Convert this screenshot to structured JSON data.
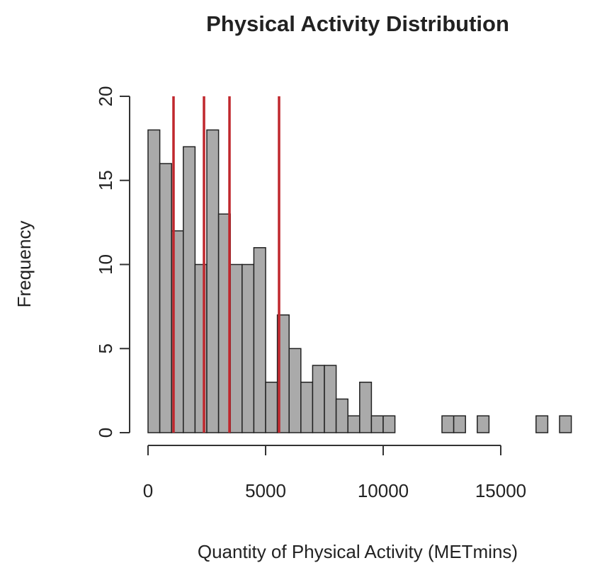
{
  "chart_data": {
    "type": "histogram",
    "title": "Physical Activity Distribution",
    "x_label": "Quantity of Physical Activity (METmins)",
    "y_label": "Frequency",
    "bins": [
      0,
      500,
      1000,
      1500,
      2000,
      2500,
      3000,
      3500,
      4000,
      4500,
      5000,
      5500,
      6000,
      6500,
      7000,
      7500,
      8000,
      8500,
      9000,
      9500,
      10000,
      10500,
      11000,
      11500,
      12000,
      12500,
      13000,
      13500,
      14000,
      14500,
      15000,
      15500,
      16000,
      16500,
      17000,
      17500,
      18000
    ],
    "counts": [
      18,
      16,
      12,
      17,
      10,
      18,
      13,
      10,
      10,
      11,
      3,
      7,
      5,
      3,
      4,
      4,
      2,
      1,
      3,
      1,
      1,
      0,
      0,
      0,
      0,
      1,
      1,
      0,
      1,
      0,
      0,
      0,
      0,
      1,
      0,
      1
    ],
    "color": "#aaaaaa",
    "vlines": [
      1084,
      2380,
      3464,
      5572
    ],
    "vline_color": "#c0272d",
    "xlim": [
      0,
      18000
    ],
    "xticks": [
      0,
      5000,
      10000,
      15000
    ],
    "ylim": [
      0,
      20
    ],
    "yticks": [
      0,
      5,
      10,
      15,
      20
    ],
    "grid": false
  }
}
